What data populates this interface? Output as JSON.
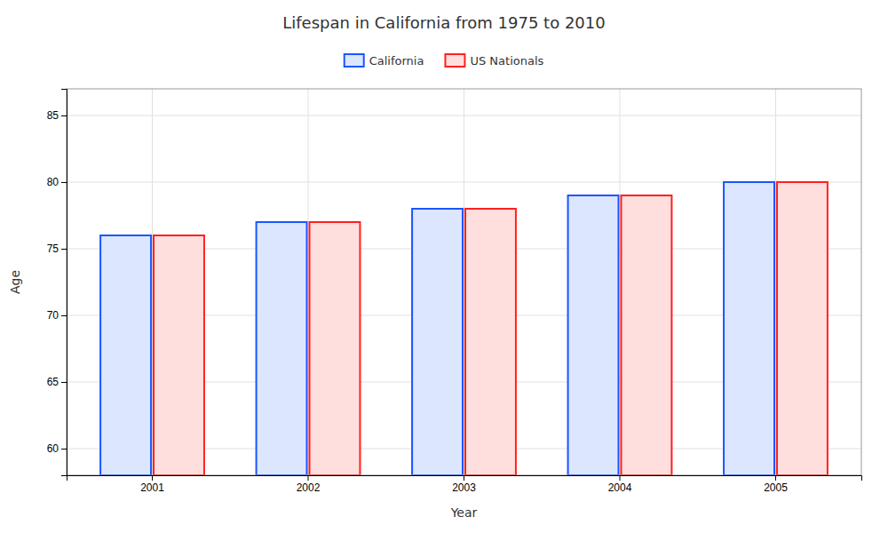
{
  "chart_data": {
    "type": "bar",
    "title": "Lifespan in California from 1975 to 2010",
    "x_label": "Year",
    "y_label": "Age",
    "categories": [
      "2001",
      "2002",
      "2003",
      "2004",
      "2005"
    ],
    "series": [
      {
        "name": "California",
        "color": "#1a56ff",
        "values": [
          76,
          77,
          78,
          79,
          80
        ]
      },
      {
        "name": "US Nationals",
        "color": "#ff2020",
        "values": [
          76,
          77,
          78,
          79,
          80
        ]
      }
    ],
    "ylim": [
      58,
      87
    ],
    "yticks": [
      60,
      65,
      70,
      75,
      80,
      85
    ],
    "grid": true,
    "legend": "top"
  }
}
